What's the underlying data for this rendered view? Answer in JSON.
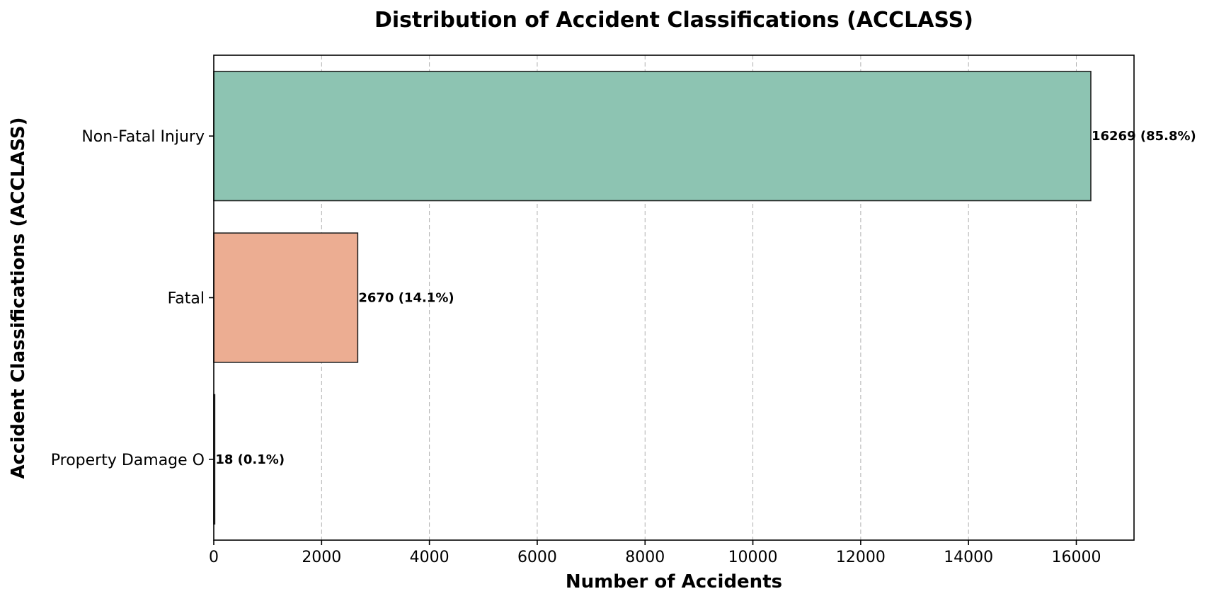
{
  "chart_data": {
    "type": "bar",
    "orientation": "horizontal",
    "title": "Distribution of Accident Classifications (ACCLASS)",
    "xlabel": "Number of Accidents",
    "ylabel": "Accident Classifications (ACCLASS)",
    "categories": [
      "Non-Fatal Injury",
      "Fatal",
      "Property Damage O"
    ],
    "values": [
      16269,
      2670,
      18
    ],
    "data_labels": [
      "16269 (85.8%)",
      "2670 (14.1%)",
      "18 (0.1%)"
    ],
    "colors": [
      "#8dc4b2",
      "#ecad92",
      "#a8b6d2"
    ],
    "xlim": [
      0,
      17070
    ],
    "xticks": [
      0,
      2000,
      4000,
      6000,
      8000,
      10000,
      12000,
      14000,
      16000
    ],
    "xtick_labels": [
      "0",
      "2000",
      "4000",
      "6000",
      "8000",
      "10000",
      "12000",
      "14000",
      "16000"
    ],
    "grid": "x-axis dashed",
    "legend": "none"
  }
}
